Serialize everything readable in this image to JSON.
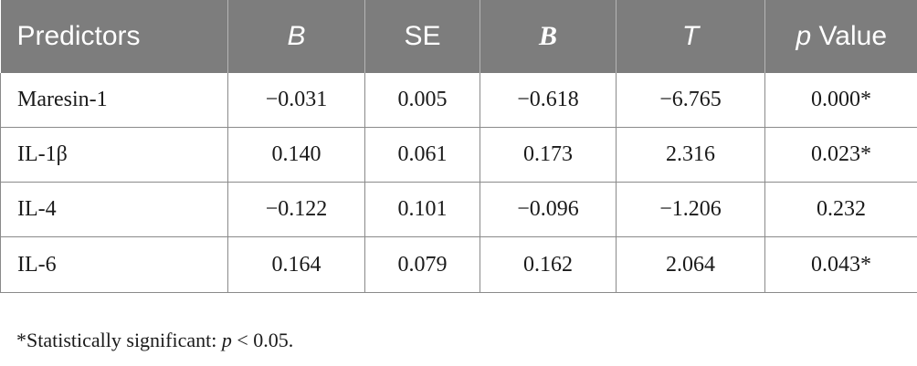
{
  "table": {
    "headers": [
      "Predictors",
      "B",
      "SE",
      "B",
      "T",
      "p Value"
    ],
    "rows": [
      [
        "Maresin-1",
        "−0.031",
        "0.005",
        "−0.618",
        "−6.765",
        "0.000*"
      ],
      [
        "IL-1β",
        "0.140",
        "0.061",
        "0.173",
        "2.316",
        "0.023*"
      ],
      [
        "IL-4",
        "−0.122",
        "0.101",
        "−0.096",
        "−1.206",
        "0.232"
      ],
      [
        "IL-6",
        "0.164",
        "0.079",
        "0.162",
        "2.064",
        "0.043*"
      ]
    ]
  },
  "footnote": {
    "prefix": "*Statistically significant: ",
    "p": "p",
    "suffix": " < 0.05."
  },
  "colors": {
    "header_bg": "#7d7d7d",
    "header_text": "#ffffff",
    "border": "#8a8a8a"
  }
}
